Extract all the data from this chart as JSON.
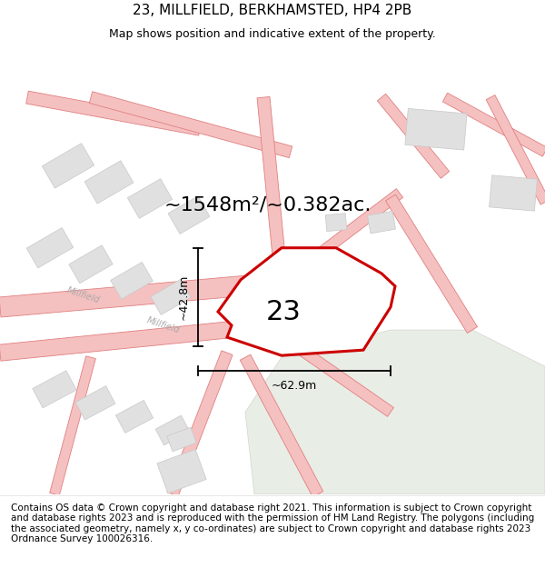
{
  "title": "23, MILLFIELD, BERKHAMSTED, HP4 2PB",
  "subtitle": "Map shows position and indicative extent of the property.",
  "area_label": "~1548m²/~0.382ac.",
  "plot_number": "23",
  "dim_height": "~42.8m",
  "dim_width": "~62.9m",
  "footer": "Contains OS data © Crown copyright and database right 2021. This information is subject to Crown copyright and database rights 2023 and is reproduced with the permission of HM Land Registry. The polygons (including the associated geometry, namely x, y co-ordinates) are subject to Crown copyright and database rights 2023 Ordnance Survey 100026316.",
  "bg_color": "#ffffff",
  "road_color": "#f5c0c0",
  "road_edge_color": "#e08080",
  "building_color": "#e0e0e0",
  "building_edge": "#c8c8c8",
  "green_color": "#e8ede6",
  "green_edge": "#d0d8cc",
  "plot_fill": "#ffffff",
  "plot_edge": "#cc0000",
  "plot_edge_width": 2.2,
  "street_label": "Millfield",
  "title_fontsize": 11,
  "subtitle_fontsize": 9,
  "area_fontsize": 16,
  "dim_fontsize": 9,
  "plot_num_fontsize": 22,
  "footer_fontsize": 7.5,
  "street_fontsize": 7
}
